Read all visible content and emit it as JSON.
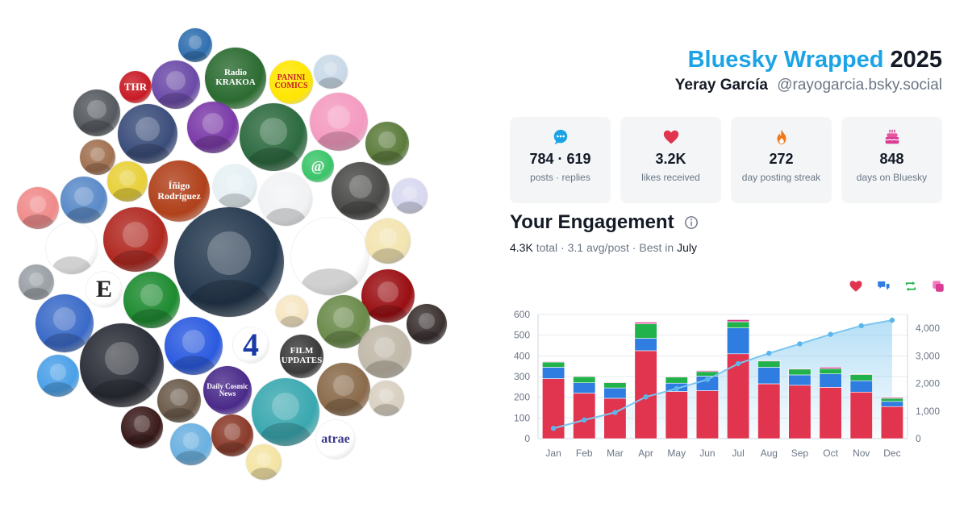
{
  "header": {
    "brand": "Bluesky Wrapped",
    "year": "2025",
    "user_name": "Yeray García",
    "handle": "@rayogarcia.bsky.social"
  },
  "stats": [
    {
      "icon": "chat-bubble-icon",
      "value": "784 · 619",
      "label": "posts · replies"
    },
    {
      "icon": "heart-icon",
      "value": "3.2K",
      "label": "likes received"
    },
    {
      "icon": "flame-icon",
      "value": "272",
      "label": "day posting streak"
    },
    {
      "icon": "birthday-cake-icon",
      "value": "848",
      "label": "days on Bluesky"
    }
  ],
  "engagement": {
    "title": "Your Engagement",
    "total_value": "4.3K",
    "total_word": "total",
    "avg": "3.1 avg/post",
    "best_prefix": "Best in",
    "best_month": "July"
  },
  "legend": [
    {
      "icon": "heart-icon",
      "color": "#e0344f"
    },
    {
      "icon": "reply-icon",
      "color": "#2f7de1"
    },
    {
      "icon": "repost-icon",
      "color": "#22b24c"
    },
    {
      "icon": "quote-icon",
      "color": "#d93d93"
    }
  ],
  "avatar_logos": [
    "THR",
    "Radio KRAKOA",
    "PANINI COMICS",
    "Íñigo Rodríguez",
    "E",
    "4",
    "FILM UPDATES",
    "Daily Cosmic News",
    "atrae",
    "@"
  ],
  "chart_data": {
    "type": "bar",
    "categories": [
      "Jan",
      "Feb",
      "Mar",
      "Apr",
      "May",
      "Jun",
      "Jul",
      "Aug",
      "Sep",
      "Oct",
      "Nov",
      "Dec"
    ],
    "series": [
      {
        "name": "likes",
        "color": "#e0344f",
        "values": [
          290,
          220,
          195,
          425,
          228,
          232,
          410,
          265,
          258,
          248,
          225,
          155
        ]
      },
      {
        "name": "replies",
        "color": "#2f7de1",
        "values": [
          55,
          50,
          50,
          60,
          40,
          70,
          125,
          80,
          50,
          65,
          55,
          25
        ]
      },
      {
        "name": "reposts",
        "color": "#22b24c",
        "values": [
          25,
          30,
          25,
          70,
          30,
          22,
          30,
          30,
          28,
          25,
          30,
          15
        ]
      },
      {
        "name": "quotes",
        "color": "#d93d93",
        "values": [
          3,
          3,
          3,
          8,
          3,
          5,
          10,
          3,
          3,
          7,
          3,
          5
        ]
      }
    ],
    "cumulative_line": {
      "values": [
        373,
        676,
        949,
        1512,
        1813,
        2142,
        2717,
        3095,
        3434,
        3779,
        4092,
        4292
      ]
    },
    "ylim_left": [
      0,
      600
    ],
    "yticks_left": [
      "0",
      "100",
      "200",
      "300",
      "400",
      "500",
      "600"
    ],
    "ylim_right": [
      0,
      4500
    ],
    "yticks_right": [
      "0",
      "1,000",
      "2,000",
      "3,000",
      "4,000"
    ],
    "grid": true
  }
}
